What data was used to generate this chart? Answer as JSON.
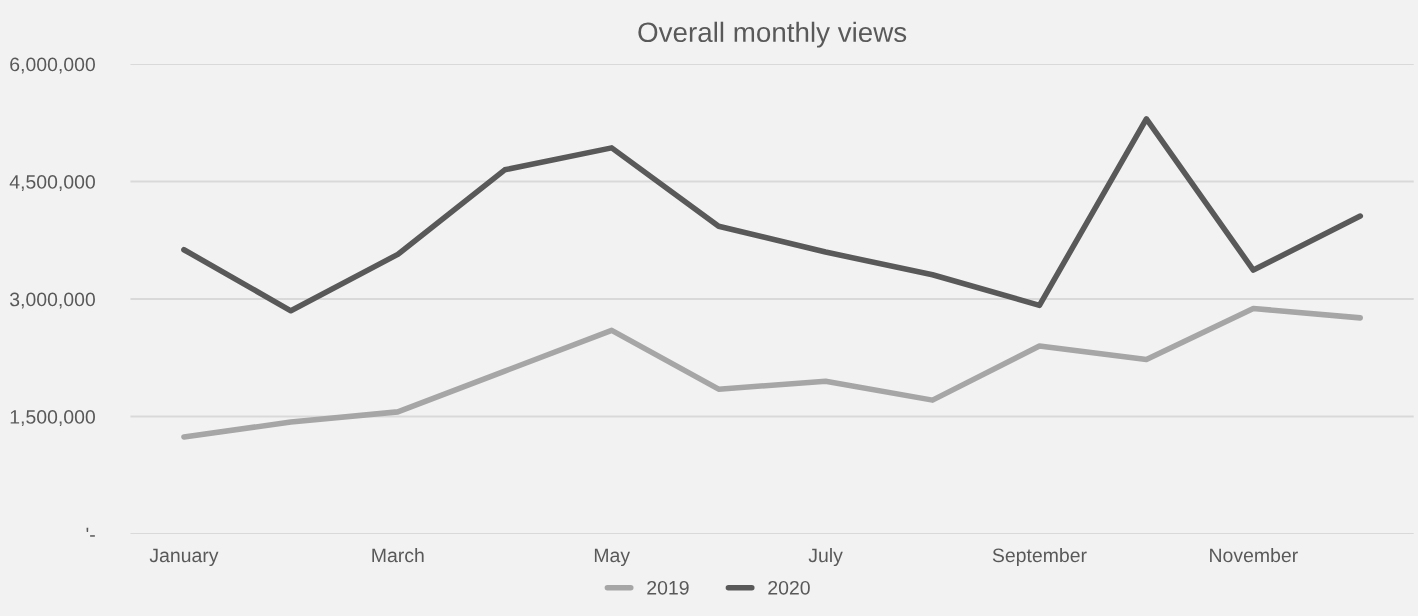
{
  "chart_data": {
    "type": "line",
    "title": "Overall monthly views",
    "categories": [
      "January",
      null,
      "March",
      null,
      "May",
      null,
      "July",
      null,
      "September",
      null,
      "November",
      null
    ],
    "series": [
      {
        "name": "2019",
        "color": "#a6a6a6",
        "values": [
          1240000,
          1430000,
          1560000,
          2080000,
          2600000,
          1850000,
          1950000,
          1710000,
          2400000,
          2230000,
          2880000,
          2760000
        ]
      },
      {
        "name": "2020",
        "color": "#595959",
        "values": [
          3630000,
          2850000,
          3570000,
          4650000,
          4930000,
          3930000,
          3600000,
          3310000,
          2920000,
          5300000,
          3370000,
          4060000
        ]
      }
    ],
    "ylim": [
      0,
      6000000
    ],
    "yticks": [
      {
        "value": 0,
        "label": "'-"
      },
      {
        "value": 1500000,
        "label": "1,500,000"
      },
      {
        "value": 3000000,
        "label": "3,000,000"
      },
      {
        "value": 4500000,
        "label": "4,500,000"
      },
      {
        "value": 6000000,
        "label": "6,000,000"
      }
    ],
    "grid": "y",
    "legend": "bottom",
    "marker": "none",
    "line_style": "solid"
  }
}
